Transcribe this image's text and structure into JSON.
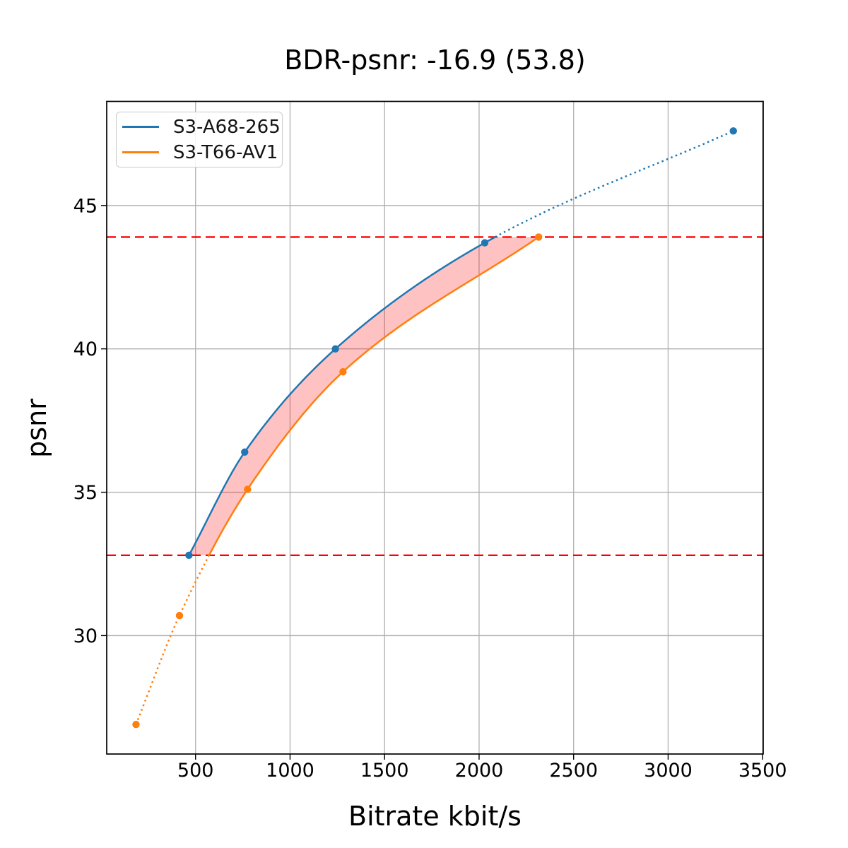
{
  "chart_data": {
    "type": "line",
    "title": "BDR-psnr: -16.9 (53.8)",
    "xlabel": "Bitrate kbit/s",
    "ylabel": "psnr",
    "xlim": [
      30,
      3503
    ],
    "ylim": [
      25.87,
      48.63
    ],
    "x_ticks": [
      500,
      1000,
      1500,
      2000,
      2500,
      3000,
      3500
    ],
    "y_ticks": [
      30,
      35,
      40,
      45
    ],
    "grid": true,
    "grid_color": "#b0b0b0",
    "legend_position": "upper-left",
    "series": [
      {
        "name": "S3-A68-265",
        "color": "#1f77b4",
        "marker": "circle",
        "x": [
          465,
          760,
          1240,
          2030,
          3345
        ],
        "y": [
          32.8,
          36.4,
          40.0,
          43.7,
          47.6
        ],
        "line_style": "solid inside overlap, dotted above psnr 43.9"
      },
      {
        "name": "S3-T66-AV1",
        "color": "#ff7f0e",
        "marker": "circle",
        "x": [
          185,
          415,
          775,
          1280,
          2315
        ],
        "y": [
          26.9,
          30.7,
          35.1,
          39.2,
          43.9
        ],
        "line_style": "dotted below psnr 32.8, solid inside overlap"
      }
    ],
    "hlines": {
      "color": "#ff0000",
      "style": "dashed",
      "values": [
        43.9,
        32.8
      ]
    },
    "fill_between": {
      "color": "rgba(255,0,0,0.24)",
      "between": [
        "S3-A68-265",
        "S3-T66-AV1"
      ],
      "psnr_range": [
        32.8,
        43.9
      ]
    }
  }
}
